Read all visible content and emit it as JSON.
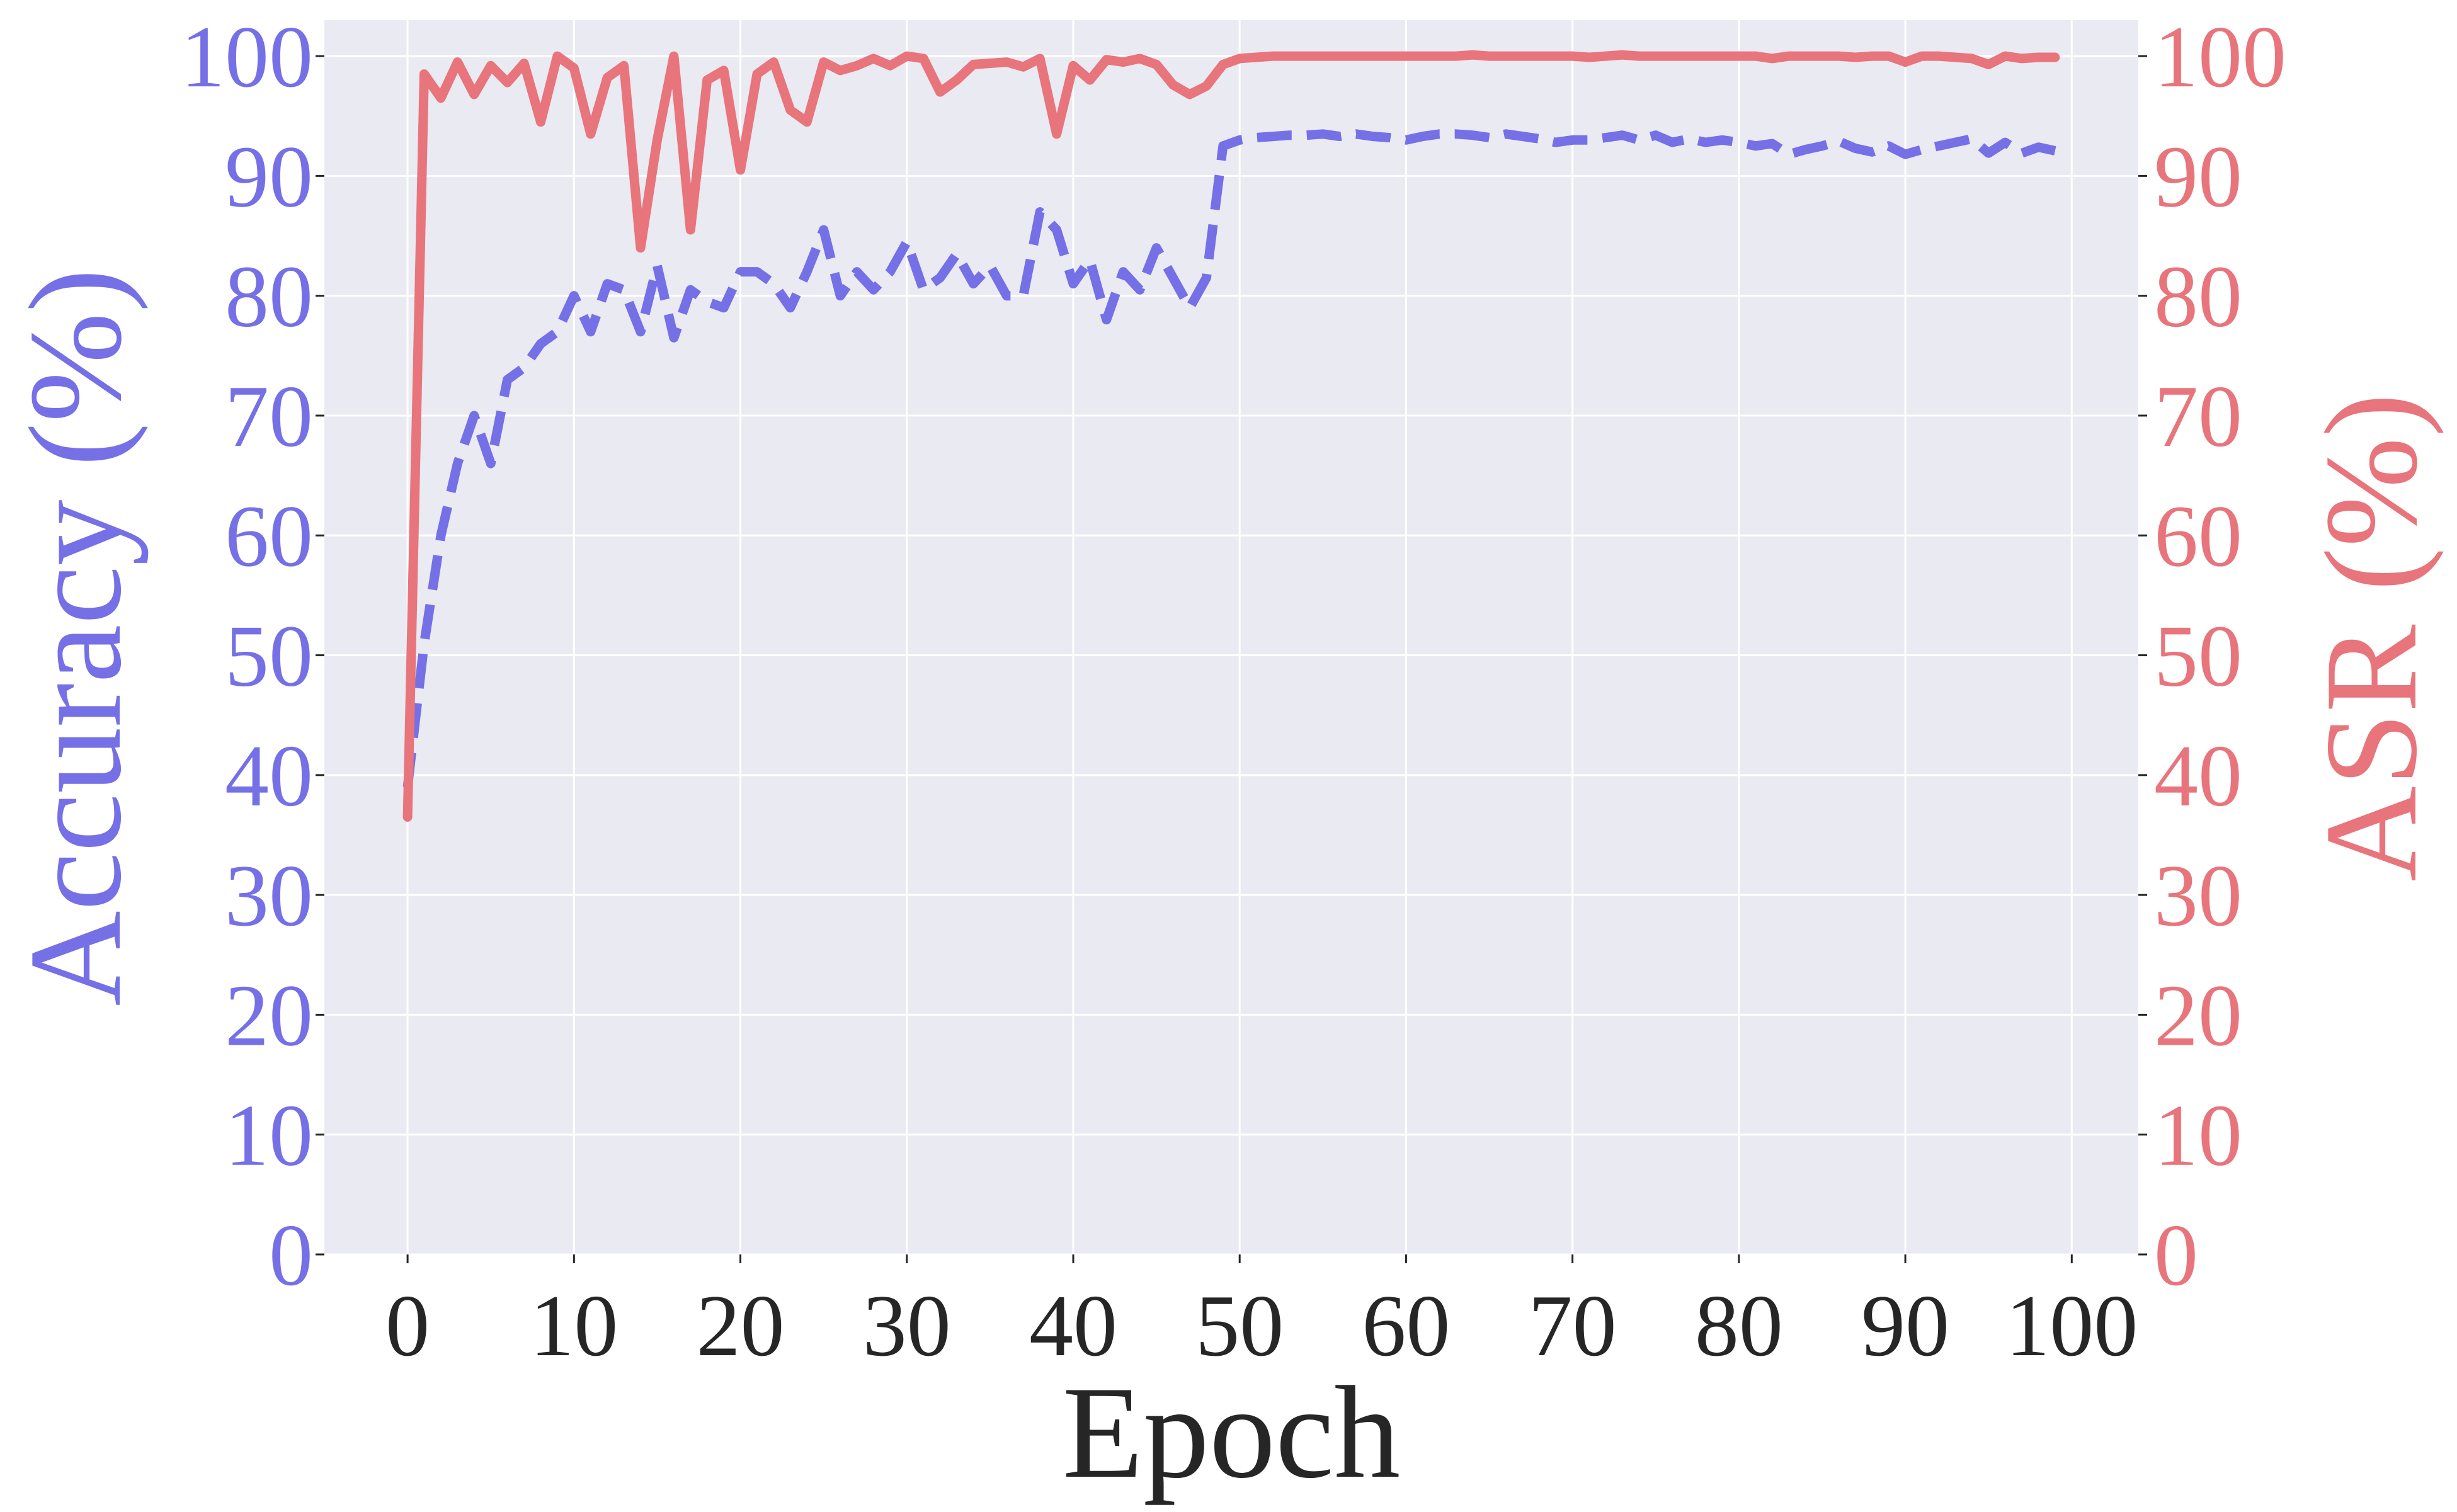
{
  "chart_data": {
    "type": "line",
    "xlabel": "Epoch",
    "ylabel_left": "Accuracy (%)",
    "ylabel_right": "ASR (%)",
    "xlim": [
      -5,
      104
    ],
    "ylim_left": [
      0,
      103
    ],
    "ylim_right": [
      0,
      103
    ],
    "x_ticks": [
      0,
      10,
      20,
      30,
      40,
      50,
      60,
      70,
      80,
      90,
      100
    ],
    "y_ticks": [
      0,
      10,
      20,
      30,
      40,
      50,
      60,
      70,
      80,
      90,
      100
    ],
    "grid": true,
    "colors": {
      "plot_bg": "#eaeaf2",
      "grid": "#ffffff",
      "accuracy": "#7570e6",
      "asr": "#e8747c",
      "x_text": "#262626"
    },
    "series": [
      {
        "name": "Accuracy",
        "axis": "left",
        "style": "dashed",
        "color": "#7570e6",
        "x": [
          0,
          1,
          2,
          3,
          4,
          5,
          6,
          7,
          8,
          9,
          10,
          11,
          12,
          13,
          14,
          15,
          16,
          17,
          18,
          19,
          20,
          21,
          22,
          23,
          24,
          25,
          26,
          27,
          28,
          29,
          30,
          31,
          32,
          33,
          34,
          35,
          36,
          37,
          38,
          39,
          40,
          41,
          42,
          43,
          44,
          45,
          46,
          47,
          48,
          49,
          50,
          51,
          52,
          53,
          54,
          55,
          56,
          57,
          58,
          59,
          60,
          61,
          62,
          63,
          64,
          65,
          66,
          67,
          68,
          69,
          70,
          71,
          72,
          73,
          74,
          75,
          76,
          77,
          78,
          79,
          80,
          81,
          82,
          83,
          84,
          85,
          86,
          87,
          88,
          89,
          90,
          91,
          92,
          93,
          94,
          95,
          96,
          97,
          98,
          99
        ],
        "values": [
          39,
          51,
          60,
          66,
          70,
          66,
          73,
          74,
          76,
          77,
          80,
          77,
          81,
          80.5,
          77,
          82.5,
          76.5,
          80.5,
          79.5,
          79,
          82,
          82,
          81,
          79,
          82,
          85.5,
          80,
          82,
          80.5,
          82,
          84.5,
          80.5,
          81.5,
          83.5,
          81,
          82.5,
          80,
          80,
          87,
          85.5,
          81,
          83,
          78,
          82,
          80.5,
          84,
          81.5,
          79,
          81.5,
          92.5,
          93,
          93.2,
          93.3,
          93.4,
          93.4,
          93.5,
          93.3,
          93.5,
          93.3,
          93.2,
          93,
          93.3,
          93.5,
          93.5,
          93.4,
          93.2,
          93.5,
          93.3,
          93.1,
          92.8,
          93,
          93,
          93.2,
          93.4,
          93,
          93.4,
          92.8,
          93.1,
          92.8,
          93,
          92.8,
          92.5,
          92.7,
          91.8,
          92.2,
          92.5,
          92.9,
          92.3,
          92,
          92.5,
          91.8,
          92.2,
          92.5,
          92.8,
          93.1,
          91.9,
          92.8,
          91.9,
          92.4,
          92.1
        ]
      },
      {
        "name": "ASR",
        "axis": "right",
        "style": "solid",
        "color": "#e8747c",
        "x": [
          0,
          1,
          2,
          3,
          4,
          5,
          6,
          7,
          8,
          9,
          10,
          11,
          12,
          13,
          14,
          15,
          16,
          17,
          18,
          19,
          20,
          21,
          22,
          23,
          24,
          25,
          26,
          27,
          28,
          29,
          30,
          31,
          32,
          33,
          34,
          35,
          36,
          37,
          38,
          39,
          40,
          41,
          42,
          43,
          44,
          45,
          46,
          47,
          48,
          49,
          50,
          51,
          52,
          53,
          54,
          55,
          56,
          57,
          58,
          59,
          60,
          61,
          62,
          63,
          64,
          65,
          66,
          67,
          68,
          69,
          70,
          71,
          72,
          73,
          74,
          75,
          76,
          77,
          78,
          79,
          80,
          81,
          82,
          83,
          84,
          85,
          86,
          87,
          88,
          89,
          90,
          91,
          92,
          93,
          94,
          95,
          96,
          97,
          98,
          99
        ],
        "values": [
          36.5,
          98.5,
          96.5,
          99.5,
          96.8,
          99.2,
          97.8,
          99.4,
          94.5,
          100,
          99,
          93.5,
          98.2,
          99.2,
          84,
          93,
          100,
          85.5,
          98,
          98.8,
          90.5,
          98.5,
          99.5,
          95.5,
          94.5,
          99.5,
          98.8,
          99.2,
          99.8,
          99.2,
          100,
          99.8,
          97,
          98,
          99.3,
          99.4,
          99.5,
          99.1,
          99.8,
          93.5,
          99.2,
          98,
          99.7,
          99.5,
          99.8,
          99.3,
          97.6,
          96.8,
          97.5,
          99.3,
          99.8,
          99.9,
          100,
          100,
          100,
          100,
          100,
          100,
          100,
          100,
          100,
          100,
          100,
          100,
          100.1,
          100,
          100,
          100,
          100,
          100,
          100,
          99.9,
          100,
          100.1,
          100,
          100,
          100,
          100,
          100,
          100,
          100,
          100,
          99.8,
          100,
          100,
          100,
          100,
          99.9,
          100,
          100,
          99.5,
          100,
          100,
          99.9,
          99.8,
          99.3,
          100,
          99.8,
          99.9,
          99.9
        ]
      }
    ]
  }
}
